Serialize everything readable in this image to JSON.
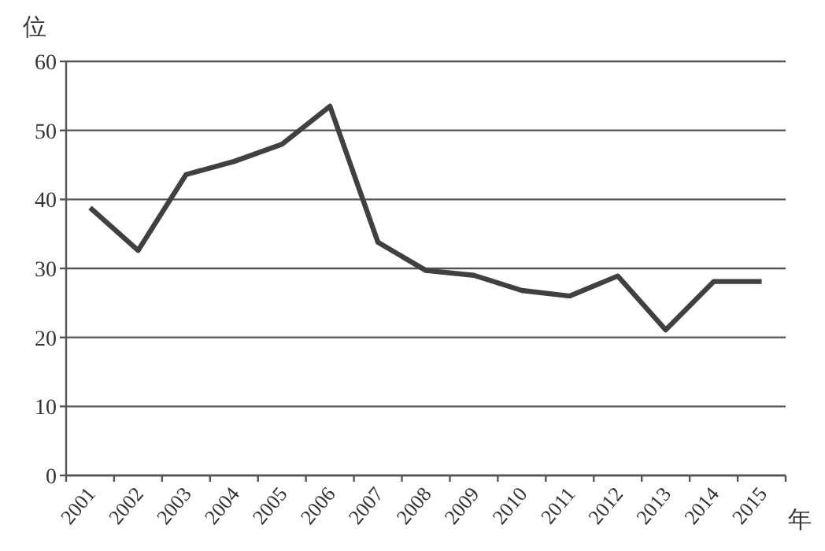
{
  "chart_data": {
    "type": "line",
    "ylabel": "位",
    "xlabel": "年",
    "categories": [
      "2001",
      "2002",
      "2003",
      "2004",
      "2005",
      "2006",
      "2007",
      "2008",
      "2009",
      "2010",
      "2011",
      "2012",
      "2013",
      "2014",
      "2015"
    ],
    "series": [
      {
        "color": "#404040",
        "values": [
          38.8,
          32.6,
          43.6,
          45.5,
          48,
          53.5,
          33.8,
          29.7,
          29.0,
          26.8,
          26.0,
          28.9,
          21.1,
          28.1,
          28.1
        ]
      }
    ],
    "ylim": [
      0,
      60
    ],
    "yticks": [
      0,
      10,
      20,
      30,
      40,
      50,
      60
    ],
    "grid": "y",
    "marker": "none",
    "line_style": "solid"
  }
}
